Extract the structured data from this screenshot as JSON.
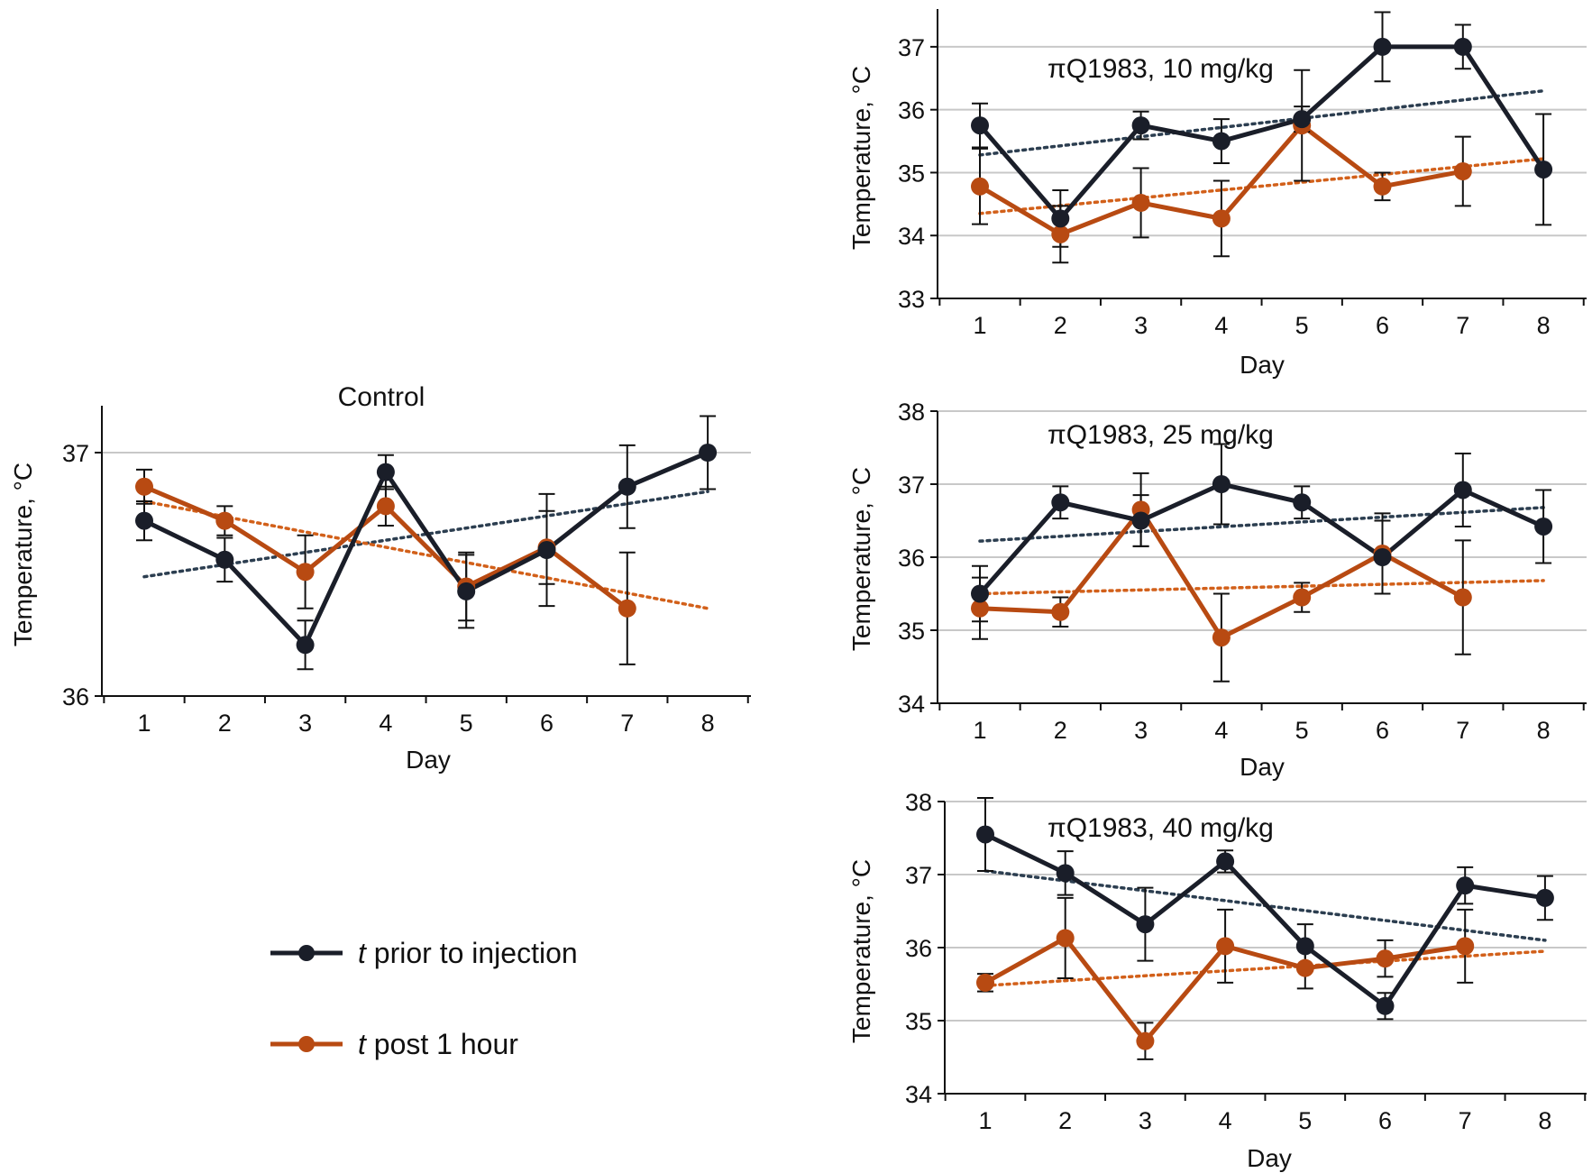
{
  "colors": {
    "prior": "#1a1e29",
    "post": "#b84a12",
    "prior_trend": "#2c3e50",
    "post_trend": "#d2601a",
    "grid": "#c8c8c8"
  },
  "legend": {
    "items": [
      {
        "italic": "t",
        "label": " prior to injection"
      },
      {
        "italic": "t",
        "label": " post 1 hour"
      }
    ]
  },
  "chart_data": [
    {
      "type": "line",
      "title": "Control",
      "xlabel": "Day",
      "ylabel": "Temperature, °C",
      "categories": [
        "1",
        "2",
        "3",
        "4",
        "5",
        "6",
        "7",
        "8"
      ],
      "ylim": [
        36,
        37
      ],
      "yticks": [
        "36",
        "37"
      ],
      "grid": true,
      "series": [
        {
          "name": "t prior to injection",
          "values": [
            36.72,
            36.56,
            36.21,
            36.92,
            36.43,
            36.6,
            36.86,
            37.0
          ],
          "errors": [
            0.08,
            0.09,
            0.1,
            0.07,
            0.15,
            0.23,
            0.17,
            0.15
          ],
          "trend": [
            36.49,
            36.84
          ]
        },
        {
          "name": "t post 1 hour",
          "values": [
            36.86,
            36.72,
            36.51,
            36.78,
            36.45,
            36.61,
            36.36,
            null
          ],
          "errors": [
            0.07,
            0.06,
            0.15,
            0.08,
            0.14,
            0.15,
            0.23,
            null
          ],
          "trend": [
            36.8,
            36.36
          ]
        }
      ]
    },
    {
      "type": "line",
      "title": "πQ1983, 10 mg/kg",
      "xlabel": "Day",
      "ylabel": "Temperature, °C",
      "categories": [
        "1",
        "2",
        "3",
        "4",
        "5",
        "6",
        "7",
        "8"
      ],
      "ylim": [
        33,
        37.5
      ],
      "yticks": [
        "33",
        "34",
        "35",
        "36",
        "37"
      ],
      "grid": true,
      "series": [
        {
          "name": "t prior to injection",
          "values": [
            35.75,
            34.27,
            35.75,
            35.5,
            35.85,
            37.0,
            37.0,
            35.05
          ],
          "errors": [
            0.35,
            0.45,
            0.22,
            0.35,
            0.2,
            0.55,
            0.35,
            0.88
          ],
          "trend": [
            35.28,
            36.3
          ]
        },
        {
          "name": "t post 1 hour",
          "values": [
            34.78,
            34.02,
            34.52,
            34.27,
            35.75,
            34.78,
            35.02,
            null
          ],
          "errors": [
            0.6,
            0.45,
            0.55,
            0.6,
            0.88,
            0.22,
            0.55,
            null
          ],
          "trend": [
            34.35,
            35.22
          ]
        }
      ]
    },
    {
      "type": "line",
      "title": "πQ1983, 25 mg/kg",
      "xlabel": "Day",
      "ylabel": "Temperature, °C",
      "categories": [
        "1",
        "2",
        "3",
        "4",
        "5",
        "6",
        "7",
        "8"
      ],
      "ylim": [
        34,
        38
      ],
      "yticks": [
        "34",
        "35",
        "36",
        "37",
        "38"
      ],
      "grid": true,
      "series": [
        {
          "name": "t prior to injection",
          "values": [
            35.5,
            36.75,
            36.5,
            37.0,
            36.75,
            36.0,
            36.92,
            36.42
          ],
          "errors": [
            0.38,
            0.22,
            0.35,
            0.55,
            0.22,
            0.5,
            0.5,
            0.5
          ],
          "trend": [
            36.22,
            36.68
          ]
        },
        {
          "name": "t post 1 hour",
          "values": [
            35.3,
            35.25,
            36.65,
            34.9,
            35.45,
            36.05,
            35.45,
            null
          ],
          "errors": [
            0.42,
            0.2,
            0.5,
            0.6,
            0.2,
            0.55,
            0.78,
            null
          ],
          "trend": [
            35.5,
            35.68
          ]
        }
      ]
    },
    {
      "type": "line",
      "title": "πQ1983, 40 mg/kg",
      "xlabel": "Day",
      "ylabel": "Temperature, °C",
      "categories": [
        "1",
        "2",
        "3",
        "4",
        "5",
        "6",
        "7",
        "8"
      ],
      "ylim": [
        34,
        38
      ],
      "yticks": [
        "34",
        "35",
        "36",
        "37",
        "38"
      ],
      "grid": true,
      "series": [
        {
          "name": "t prior to injection",
          "values": [
            37.55,
            37.02,
            36.32,
            37.18,
            36.02,
            35.2,
            36.85,
            36.68
          ],
          "errors": [
            0.5,
            0.3,
            0.5,
            0.15,
            0.3,
            0.18,
            0.25,
            0.3
          ],
          "trend": [
            37.05,
            36.1
          ]
        },
        {
          "name": "t post 1 hour",
          "values": [
            35.52,
            36.13,
            34.72,
            36.02,
            35.72,
            35.85,
            36.02,
            null
          ],
          "errors": [
            0.12,
            0.55,
            0.25,
            0.5,
            0.28,
            0.25,
            0.5,
            null
          ],
          "trend": [
            35.48,
            35.95
          ]
        }
      ]
    }
  ]
}
